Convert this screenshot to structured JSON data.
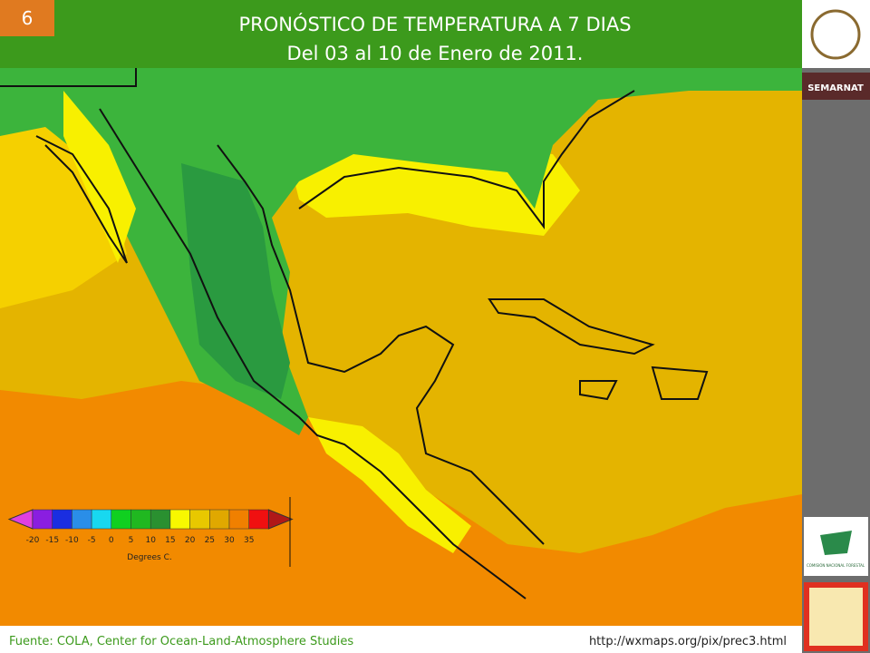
{
  "slide_number": "6",
  "header": {
    "title": "PRONÓSTICO DE TEMPERATURA A 7 DIAS",
    "subtitle": "Del 03 al 10 de Enero de 2011."
  },
  "sidebar": {
    "brand": "SEMARNAT",
    "logo_caption": "COMISIÓN NACIONAL FORESTAL"
  },
  "legend": {
    "label": "Degrees C.",
    "ticks": [
      -20,
      -15,
      -10,
      -5,
      0,
      5,
      10,
      15,
      20,
      25,
      30,
      35
    ],
    "low_color": "#e040e0",
    "high_color": "#b01818",
    "colors": [
      "#8a1ee0",
      "#1a2ee0",
      "#2a8ee8",
      "#18d8f0",
      "#10d020",
      "#20b820",
      "#2a9030",
      "#f8f800",
      "#e8c800",
      "#e0a800",
      "#f08000",
      "#f01010"
    ]
  },
  "footer": {
    "source": "Fuente: COLA, Center  for Ocean-Land-Atmosphere Studies",
    "url": "http://wxmaps.org/pix/prec3.html"
  }
}
